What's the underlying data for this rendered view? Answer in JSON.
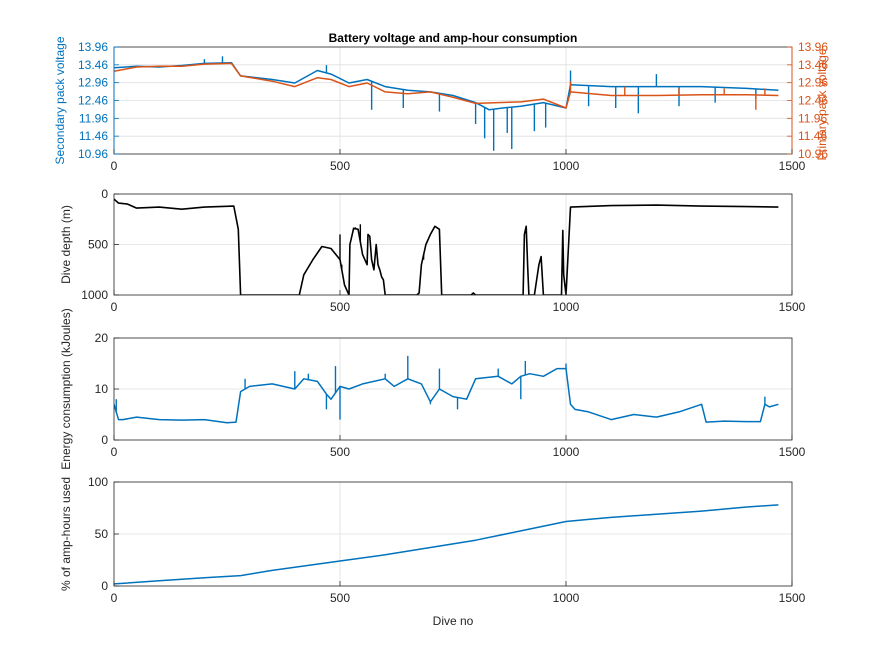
{
  "colors": {
    "blue": "#0072BD",
    "orange": "#D95319",
    "black": "#000000",
    "grid": "#dfdfdf",
    "axis": "#262626"
  },
  "chart_data": [
    {
      "type": "line",
      "title": "Battery voltage and amp-hour consumption",
      "xlabel": "",
      "ylabel": "Secondary pack voltage",
      "ylabel_right": "Primary pack voltage",
      "xlim": [
        0,
        1500
      ],
      "ylim": [
        10.96,
        13.96
      ],
      "ylim_right": [
        10.96,
        13.96
      ],
      "xticks": [
        "0",
        "500",
        "1000",
        "1500"
      ],
      "yticks": [
        "10.96",
        "11.46",
        "11.96",
        "12.46",
        "12.96",
        "13.46",
        "13.96"
      ],
      "yticks_right": [
        "10.96",
        "11.46",
        "11.96",
        "12.46",
        "12.96",
        "13.46",
        "13.96"
      ],
      "grid": true,
      "series": [
        {
          "axis": "left",
          "color": "#0072BD",
          "x": [
            0,
            50,
            100,
            150,
            200,
            260,
            280,
            350,
            400,
            450,
            480,
            520,
            560,
            600,
            650,
            700,
            750,
            800,
            830,
            860,
            900,
            950,
            1000,
            1010,
            1100,
            1200,
            1300,
            1400,
            1470
          ],
          "y": [
            13.38,
            13.42,
            13.4,
            13.44,
            13.5,
            13.52,
            13.15,
            13.05,
            12.95,
            13.3,
            13.2,
            12.95,
            13.05,
            12.85,
            12.75,
            12.7,
            12.6,
            12.4,
            12.2,
            12.25,
            12.3,
            12.4,
            12.25,
            12.9,
            12.85,
            12.85,
            12.85,
            12.8,
            12.75
          ],
          "spikes": [
            {
              "x": 200,
              "y": 13.62
            },
            {
              "x": 240,
              "y": 13.7
            },
            {
              "x": 470,
              "y": 13.45
            },
            {
              "x": 570,
              "y": 12.2
            },
            {
              "x": 640,
              "y": 12.25
            },
            {
              "x": 720,
              "y": 12.15
            },
            {
              "x": 800,
              "y": 11.8
            },
            {
              "x": 820,
              "y": 11.4
            },
            {
              "x": 840,
              "y": 11.05
            },
            {
              "x": 870,
              "y": 11.55
            },
            {
              "x": 880,
              "y": 11.1
            },
            {
              "x": 930,
              "y": 11.6
            },
            {
              "x": 955,
              "y": 11.7
            },
            {
              "x": 1050,
              "y": 12.3
            },
            {
              "x": 1110,
              "y": 12.25
            },
            {
              "x": 1160,
              "y": 12.1
            },
            {
              "x": 1250,
              "y": 12.3
            },
            {
              "x": 1330,
              "y": 12.4
            },
            {
              "x": 1420,
              "y": 12.5
            },
            {
              "x": 1010,
              "y": 13.3
            },
            {
              "x": 1200,
              "y": 13.2
            }
          ]
        },
        {
          "axis": "right",
          "color": "#D95319",
          "x": [
            0,
            50,
            100,
            150,
            200,
            260,
            280,
            350,
            400,
            450,
            480,
            520,
            560,
            600,
            650,
            700,
            750,
            800,
            850,
            900,
            950,
            1000,
            1010,
            1100,
            1200,
            1300,
            1400,
            1470
          ],
          "y": [
            13.28,
            13.4,
            13.42,
            13.42,
            13.48,
            13.5,
            13.15,
            13.0,
            12.85,
            13.1,
            13.05,
            12.85,
            12.95,
            12.7,
            12.65,
            12.7,
            12.55,
            12.38,
            12.4,
            12.42,
            12.5,
            12.25,
            12.7,
            12.6,
            12.6,
            12.62,
            12.62,
            12.6
          ],
          "spikes": [
            {
              "x": 1010,
              "y": 13.0
            },
            {
              "x": 1130,
              "y": 12.85
            },
            {
              "x": 1250,
              "y": 12.8
            },
            {
              "x": 1350,
              "y": 12.8
            },
            {
              "x": 1420,
              "y": 12.2
            },
            {
              "x": 1440,
              "y": 12.8
            }
          ]
        }
      ]
    },
    {
      "type": "line",
      "title": "",
      "xlabel": "",
      "ylabel": "Dive depth (m)",
      "xlim": [
        0,
        1500
      ],
      "ylim": [
        0,
        1000
      ],
      "y_reversed": true,
      "xticks": [
        "0",
        "500",
        "1000",
        "1500"
      ],
      "yticks": [
        "0",
        "500",
        "1000"
      ],
      "grid": true,
      "series": [
        {
          "color": "#000000",
          "x": [
            0,
            10,
            30,
            50,
            100,
            150,
            200,
            265,
            275,
            280,
            410,
            420,
            440,
            460,
            480,
            500,
            510,
            520,
            522,
            528,
            530,
            540,
            550,
            560,
            562,
            566,
            570,
            575,
            580,
            584,
            588,
            592,
            596,
            600,
            605,
            620,
            650,
            670,
            675,
            680,
            690,
            700,
            710,
            720,
            725,
            735,
            745,
            755,
            765,
            775,
            790,
            795,
            800,
            905,
            908,
            912,
            915,
            918,
            930,
            940,
            945,
            950,
            965,
            990,
            993,
            995,
            1000,
            1010,
            1100,
            1200,
            1300,
            1400,
            1470
          ],
          "y": [
            50,
            90,
            100,
            140,
            130,
            150,
            130,
            120,
            350,
            1000,
            1000,
            800,
            650,
            520,
            540,
            650,
            900,
            1000,
            500,
            380,
            340,
            350,
            600,
            700,
            400,
            420,
            650,
            750,
            500,
            700,
            750,
            820,
            850,
            1000,
            1000,
            1000,
            1000,
            1000,
            980,
            700,
            500,
            400,
            320,
            350,
            1000,
            1000,
            1000,
            1000,
            1000,
            1000,
            1000,
            980,
            1000,
            1000,
            400,
            320,
            700,
            1000,
            1000,
            700,
            620,
            1000,
            1000,
            1000,
            360,
            800,
            1000,
            130,
            115,
            110,
            120,
            125,
            130
          ],
          "spikes": [
            {
              "x": 500,
              "y": 400
            },
            {
              "x": 504,
              "y": 700
            },
            {
              "x": 534,
              "y": 330
            },
            {
              "x": 545,
              "y": 300
            },
            {
              "x": 685,
              "y": 650
            },
            {
              "x": 990,
              "y": 1000
            }
          ]
        }
      ]
    },
    {
      "type": "line",
      "title": "",
      "xlabel": "",
      "ylabel": "Energy consumption (kJoules)",
      "xlim": [
        0,
        1500
      ],
      "ylim": [
        0,
        20
      ],
      "xticks": [
        "0",
        "500",
        "1000",
        "1500"
      ],
      "yticks": [
        "0",
        "10",
        "20"
      ],
      "grid": true,
      "series": [
        {
          "color": "#0072BD",
          "x": [
            0,
            10,
            20,
            50,
            100,
            150,
            200,
            250,
            270,
            280,
            300,
            350,
            400,
            420,
            450,
            470,
            480,
            500,
            520,
            550,
            600,
            620,
            650,
            680,
            700,
            720,
            750,
            780,
            800,
            850,
            880,
            900,
            920,
            950,
            980,
            1000,
            1010,
            1020,
            1050,
            1100,
            1150,
            1200,
            1250,
            1300,
            1310,
            1350,
            1400,
            1430,
            1440,
            1450,
            1470
          ],
          "y": [
            7.0,
            4.0,
            4.0,
            4.5,
            4.0,
            3.9,
            4.0,
            3.4,
            3.5,
            9.5,
            10.5,
            11.0,
            10.0,
            12.0,
            11.5,
            9.0,
            8.0,
            10.5,
            10.0,
            11.0,
            12.0,
            10.5,
            12.0,
            11.0,
            7.5,
            10.0,
            8.5,
            8.0,
            12.0,
            12.5,
            11.0,
            12.5,
            13.0,
            12.5,
            14.0,
            14.0,
            7.0,
            6.0,
            5.5,
            4.0,
            5.0,
            4.5,
            5.5,
            7.0,
            3.5,
            3.7,
            3.6,
            3.6,
            7.0,
            6.5,
            7.0
          ],
          "spikes": [
            {
              "x": 5,
              "y": 8.0
            },
            {
              "x": 290,
              "y": 12.0
            },
            {
              "x": 400,
              "y": 13.5
            },
            {
              "x": 430,
              "y": 13.0
            },
            {
              "x": 470,
              "y": 6.0
            },
            {
              "x": 490,
              "y": 14.5
            },
            {
              "x": 500,
              "y": 4.0
            },
            {
              "x": 600,
              "y": 13.0
            },
            {
              "x": 650,
              "y": 16.5
            },
            {
              "x": 700,
              "y": 7.0
            },
            {
              "x": 720,
              "y": 14.0
            },
            {
              "x": 760,
              "y": 6.0
            },
            {
              "x": 850,
              "y": 14.0
            },
            {
              "x": 900,
              "y": 8.0
            },
            {
              "x": 910,
              "y": 15.5
            },
            {
              "x": 1000,
              "y": 15.0
            },
            {
              "x": 1440,
              "y": 8.5
            }
          ]
        }
      ]
    },
    {
      "type": "line",
      "title": "",
      "xlabel": "Dive no",
      "ylabel": "% of amp-hours used",
      "xlim": [
        0,
        1500
      ],
      "ylim": [
        0,
        100
      ],
      "xticks": [
        "0",
        "500",
        "1000",
        "1500"
      ],
      "yticks": [
        "0",
        "50",
        "100"
      ],
      "grid": true,
      "series": [
        {
          "color": "#0072BD",
          "x": [
            0,
            100,
            200,
            280,
            350,
            400,
            500,
            600,
            700,
            800,
            900,
            1000,
            1050,
            1100,
            1200,
            1300,
            1400,
            1470
          ],
          "y": [
            2,
            5,
            8,
            10,
            15,
            18,
            24,
            30,
            37,
            44,
            53,
            62,
            64,
            66,
            69,
            72,
            76,
            78
          ]
        }
      ]
    }
  ]
}
